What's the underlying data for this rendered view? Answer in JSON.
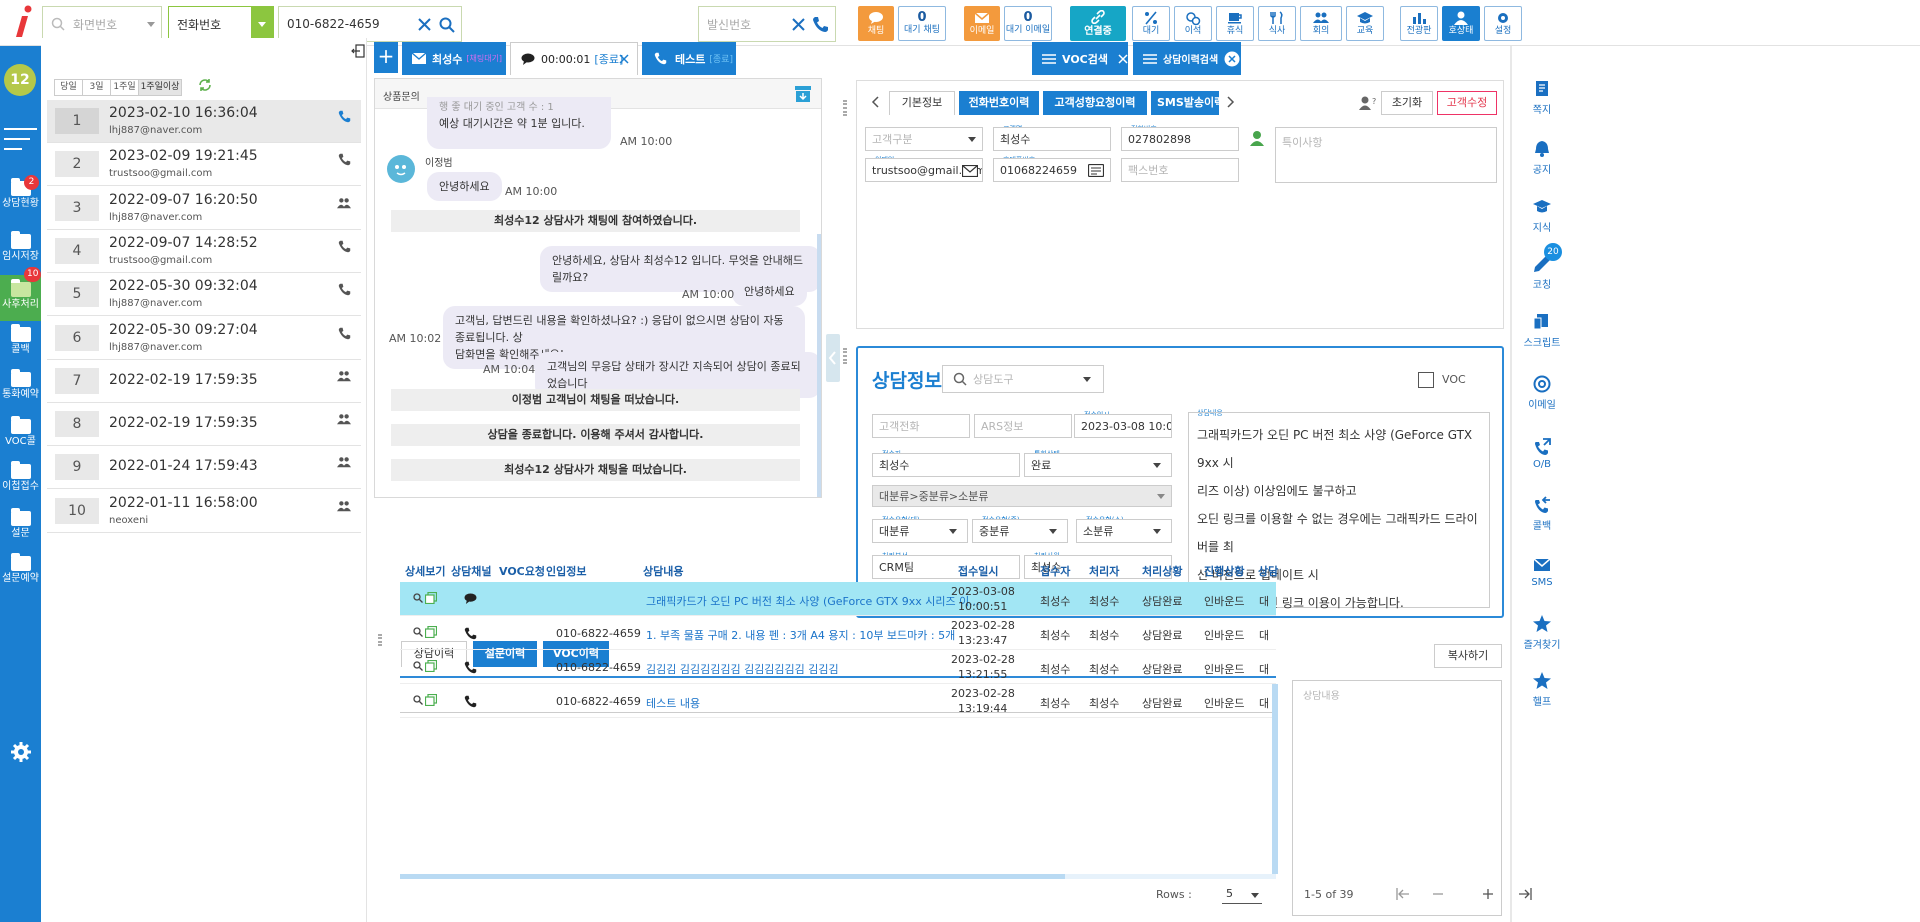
{
  "topbar": {
    "screen_no_placeholder": "화면번호",
    "search_type": "전화번호",
    "phone_value": "010-6822-4659",
    "caller_placeholder": "발신번호",
    "buttons": [
      {
        "label": "채팅",
        "icon": "chat-icon"
      },
      {
        "label": "대기 채팅",
        "count": "0"
      },
      {
        "label": "이메일",
        "icon": "mail-icon"
      },
      {
        "label": "대기 이메일",
        "count": "0"
      },
      {
        "label": "연결중",
        "icon": "link-icon"
      },
      {
        "label": "대기",
        "icon": "percent-icon"
      },
      {
        "label": "이석",
        "icon": "clock-icon"
      },
      {
        "label": "휴식",
        "icon": "coffee-icon"
      },
      {
        "label": "식사",
        "icon": "meal-icon"
      },
      {
        "label": "회의",
        "icon": "meeting-icon"
      },
      {
        "label": "교육",
        "icon": "education-icon"
      },
      {
        "label": "전광판",
        "icon": "chart-icon"
      },
      {
        "label": "호상태",
        "icon": "user-icon"
      },
      {
        "label": "설정",
        "icon": "gear-icon"
      }
    ]
  },
  "leftnav": {
    "avatar": "12",
    "items": [
      {
        "label": "상담현황",
        "badge": "2"
      },
      {
        "label": "임시저장",
        "badge": ""
      },
      {
        "label": "사후처리",
        "badge": "10"
      },
      {
        "label": "콜백",
        "badge": ""
      },
      {
        "label": "통화예약",
        "badge": ""
      },
      {
        "label": "VOC콜",
        "badge": ""
      },
      {
        "label": "이첩접수",
        "badge": ""
      },
      {
        "label": "설문",
        "badge": ""
      },
      {
        "label": "설문예약",
        "badge": ""
      }
    ]
  },
  "history": {
    "filters": [
      "당일",
      "3일",
      "1주일",
      "1주일이상"
    ],
    "rows": [
      {
        "no": "1",
        "date": "2023-02-10 16:36:04",
        "email": "lhj887@naver.com",
        "icon": "phone-icon"
      },
      {
        "no": "2",
        "date": "2023-02-09 19:21:45",
        "email": "trustsoo@gmail.com",
        "icon": "phone-icon"
      },
      {
        "no": "3",
        "date": "2022-09-07 16:20:50",
        "email": "lhj887@naver.com",
        "icon": "users-icon"
      },
      {
        "no": "4",
        "date": "2022-09-07 14:28:52",
        "email": "trustsoo@gmail.com",
        "icon": "phone-icon"
      },
      {
        "no": "5",
        "date": "2022-05-30 09:32:04",
        "email": "lhj887@naver.com",
        "icon": "phone-icon"
      },
      {
        "no": "6",
        "date": "2022-05-30 09:27:04",
        "email": "lhj887@naver.com",
        "icon": "phone-icon"
      },
      {
        "no": "7",
        "date": "2022-02-19 17:59:35",
        "email": "",
        "icon": "users-icon"
      },
      {
        "no": "8",
        "date": "2022-02-19 17:59:35",
        "email": "",
        "icon": "users-icon"
      },
      {
        "no": "9",
        "date": "2022-01-24 17:59:43",
        "email": "",
        "icon": "users-icon"
      },
      {
        "no": "10",
        "date": "2022-01-11 16:58:00",
        "email": "neoxeni",
        "icon": "users-icon"
      }
    ]
  },
  "tabs": {
    "customer_name": "최성수",
    "customer_sub": "[채팅대기]",
    "timer": "00:00:01",
    "timer_status": "[종료]",
    "test_name": "테스트",
    "test_status": "[종료]",
    "voc_search": "VOC검색",
    "history_search": "상담이력검색"
  },
  "chat": {
    "header": "상품문의",
    "first_bubble": [
      "행 좋 대기 중인 고객 수 : 1",
      "예상 대기시간은 약 1분 입니다."
    ],
    "t1": "AM 10:00",
    "user_name": "이정범",
    "user_msg": "안녕하세요",
    "t2": "AM 10:00",
    "sys1": "최성수12 상담사가 채팅에 참여하였습니다.",
    "agent_msg1": "안녕하세요,  상담사 최성수12 입니다. 무엇을 안내해드릴까요?",
    "agent_msg2": "안녕하세요",
    "t3": "AM 10:00",
    "agent_msg3": [
      "고객님, 답변드린 내용을 확인하셨나요? :) 응답이 없으시면 상담이 자동 종료됩니다. 상",
      "담화면을 확인해주세요!"
    ],
    "t4": "AM 10:02",
    "agent_msg4": "고객님의 무응답 상태가 장시간 지속되어 상담이 종료되었습니다",
    "t5": "AM 10:04",
    "sys2": "이정범 고객님이 채팅을 떠났습니다.",
    "sys3": "상담을 종료합니다. 이용해 주셔서 감사합니다.",
    "sys4": "최성수12 상담사가 채팅을 떠났습니다."
  },
  "customer": {
    "tabs": [
      "기본정보",
      "전화번호이력",
      "고객성향요청이력",
      "SMS발송이력"
    ],
    "reset": "초기화",
    "edit": "고객수정",
    "type_placeholder": "고객구분",
    "name_label": "고객명",
    "name": "최성수",
    "phone_label": "전화번호",
    "phone": "027802898",
    "email_label": "이메일",
    "email": "trustsoo@gmail.com",
    "mobile_label": "휴대폰번호",
    "mobile": "01068224659",
    "fax_placeholder": "팩스번호",
    "notes_placeholder": "특이사항"
  },
  "consult": {
    "title": "상담정보",
    "tool_placeholder": "상담도구",
    "voc": "VOC",
    "cust_phone_ph": "고객전화",
    "ars_ph": "ARS정보",
    "recv_date_label": "접수일시",
    "recv_date": "2023-03-08 10:0",
    "receiver_label": "접수자",
    "receiver": "최성수",
    "call_status_label": "통화상태",
    "call_status": "완료",
    "category": "대분류>중분류>소분류",
    "type_l_label": "접수유형(대)",
    "type_l": "대분류",
    "type_m_label": "접수유형(중)",
    "type_m": "중분류",
    "type_s_label": "접수유형(소)",
    "type_s": "소분류",
    "dept_label": "처리부서",
    "dept": "CRM팀",
    "handler_label": "처리사원",
    "handler": "최성수",
    "content_label": "상담내용",
    "content": [
      "그래픽카드가 오딘 PC 버전 최소 사양 (GeForce GTX 9xx 시",
      "리즈 이상) 이상임에도 불구하고",
      "오딘 링크를 이용할 수 없는 경우에는 그래픽카드 드라이버를 최",
      "신 버전으로 업데이트 시",
      "정상적으로 오딘 링크 이용이 가능합니다."
    ]
  },
  "history_table": {
    "tabs": [
      "상담이력",
      "설문이력",
      "VOC이력"
    ],
    "copy": "복사하기",
    "content_placeholder": "상담내용",
    "headers": [
      "상세보기",
      "상담채널",
      "VOC요청",
      "인입정보",
      "상담내용",
      "접수일시",
      "접수자",
      "처리자",
      "처리상황",
      "진행상황",
      "상담"
    ],
    "rows": [
      {
        "channel": "chat-icon",
        "phone": "",
        "content": "그래픽카드가 오딘 PC 버전 최소 사양 (GeForce GTX 9xx 시리즈 이...",
        "date": "2023-03-08",
        "time": "10:00:51",
        "receiver": "최성수",
        "handler": "최성수",
        "status": "상담완료",
        "progress": "인바운드",
        "extra": "대"
      },
      {
        "channel": "phone-icon",
        "phone": "010-6822-4659",
        "content": "1. 부족 물품 구매 2. 내용 펜 : 3개 A4 용지 : 10부 보드마카 : 5개",
        "date": "2023-02-28",
        "time": "13:23:47",
        "receiver": "최성수",
        "handler": "최성수",
        "status": "상담완료",
        "progress": "인바운드",
        "extra": "대"
      },
      {
        "channel": "phone-icon",
        "phone": "010-6822-4659",
        "content": "김김김 김김김김김김 김김김김김김 김김김",
        "date": "2023-02-28",
        "time": "13:21:55",
        "receiver": "최성수",
        "handler": "최성수",
        "status": "상담완료",
        "progress": "인바운드",
        "extra": "대"
      },
      {
        "channel": "phone-icon",
        "phone": "010-6822-4659",
        "content": "테스트 내용",
        "date": "2023-02-28",
        "time": "13:19:44",
        "receiver": "최성수",
        "handler": "최성수",
        "status": "상담완료",
        "progress": "인바운드",
        "extra": "대"
      }
    ],
    "rows_label": "Rows :",
    "rows_value": "5",
    "range": "1-5 of 39"
  },
  "rightnav": {
    "items": [
      {
        "label": "쪽지",
        "icon": "document-icon"
      },
      {
        "label": "공지",
        "icon": "bell-icon"
      },
      {
        "label": "지식",
        "icon": "graduation-icon"
      },
      {
        "label": "코칭",
        "icon": "pen-icon",
        "badge": "20"
      },
      {
        "label": "스크립트",
        "icon": "script-icon"
      },
      {
        "label": "이메일",
        "icon": "at-icon"
      },
      {
        "label": "O/B",
        "icon": "outbound-icon"
      },
      {
        "label": "콜백",
        "icon": "callback-icon"
      },
      {
        "label": "SMS",
        "icon": "sms-icon"
      },
      {
        "label": "즐겨찾기",
        "icon": "star-icon"
      },
      {
        "label": "헬프",
        "icon": "star-icon"
      }
    ]
  },
  "colors": {
    "primary": "#1b7fd1",
    "accent_orange": "#f39a3d",
    "green": "#8cc63f",
    "red": "#e8373a"
  }
}
